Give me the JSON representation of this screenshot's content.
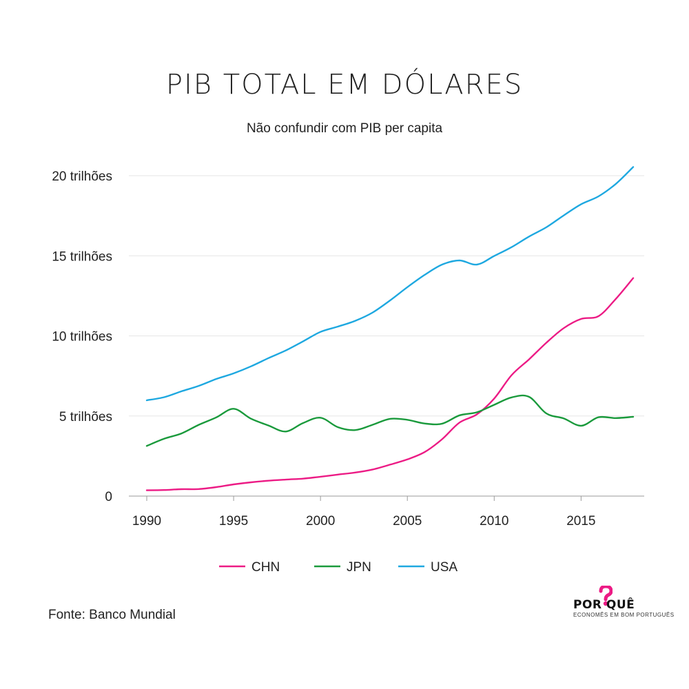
{
  "header": {
    "title": "PIB TOTAL EM DÓLARES",
    "subtitle": "Não confundir com PIB per capita"
  },
  "footer": {
    "source": "Fonte: Banco Mundial",
    "logo_word": "POR QUÊ",
    "logo_tagline": "ECONOMÊS EM BOM PORTUGUÊS"
  },
  "chart_data": {
    "type": "line",
    "title": "PIB TOTAL EM DÓLARES",
    "subtitle": "Não confundir com PIB per capita",
    "xlabel": "",
    "ylabel": "",
    "xlim": [
      1990,
      2018
    ],
    "ylim": [
      0,
      20
    ],
    "x_ticks": [
      1990,
      1995,
      2000,
      2005,
      2010,
      2015
    ],
    "y_ticks": [
      0,
      5,
      10,
      15,
      20
    ],
    "y_tick_labels": [
      "0",
      "5 trilhões",
      "10 trilhões",
      "15 trilhões",
      "20 trilhões"
    ],
    "grid": "horizontal",
    "legend_position": "bottom",
    "x": [
      1990,
      1991,
      1992,
      1993,
      1994,
      1995,
      1996,
      1997,
      1998,
      1999,
      2000,
      2001,
      2002,
      2003,
      2004,
      2005,
      2006,
      2007,
      2008,
      2009,
      2010,
      2011,
      2012,
      2013,
      2014,
      2015,
      2016,
      2017,
      2018
    ],
    "series": [
      {
        "name": "CHN",
        "color": "#ec1b85",
        "values": [
          0.36,
          0.38,
          0.43,
          0.44,
          0.56,
          0.73,
          0.86,
          0.96,
          1.03,
          1.09,
          1.21,
          1.34,
          1.47,
          1.66,
          1.96,
          2.29,
          2.75,
          3.55,
          4.59,
          5.1,
          6.09,
          7.55,
          8.53,
          9.57,
          10.48,
          11.06,
          11.23,
          12.31,
          13.61
        ]
      },
      {
        "name": "JPN",
        "color": "#1a9a3c",
        "values": [
          3.13,
          3.58,
          3.91,
          4.45,
          4.91,
          5.45,
          4.83,
          4.41,
          4.03,
          4.56,
          4.89,
          4.3,
          4.12,
          4.45,
          4.82,
          4.76,
          4.53,
          4.52,
          5.04,
          5.23,
          5.7,
          6.16,
          6.2,
          5.16,
          4.85,
          4.39,
          4.92,
          4.87,
          4.95
        ]
      },
      {
        "name": "USA",
        "color": "#1ea8e0",
        "values": [
          5.98,
          6.17,
          6.54,
          6.88,
          7.31,
          7.66,
          8.1,
          8.61,
          9.09,
          9.66,
          10.25,
          10.58,
          10.94,
          11.46,
          12.21,
          13.04,
          13.81,
          14.45,
          14.71,
          14.45,
          14.99,
          15.54,
          16.2,
          16.78,
          17.52,
          18.22,
          18.71,
          19.49,
          20.54
        ]
      }
    ]
  }
}
